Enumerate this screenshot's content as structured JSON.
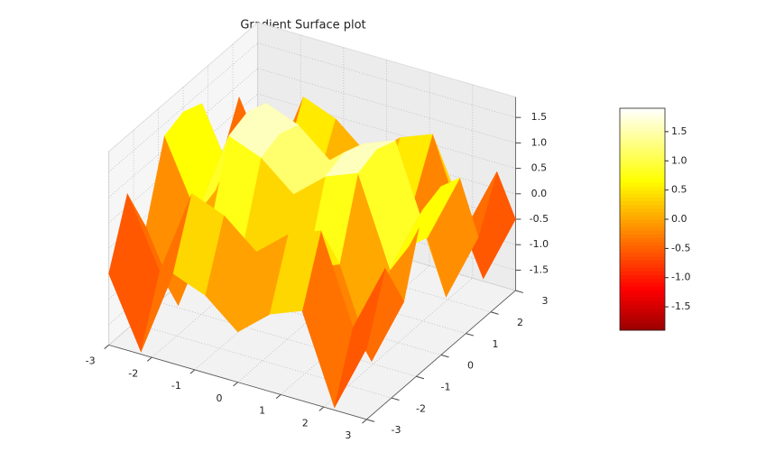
{
  "chart_data": {
    "type": "surface",
    "title": "Gradient Surface plot",
    "colormap": "hot",
    "x": [
      -3,
      -2.25,
      -1.5,
      -0.75,
      0,
      0.75,
      1.5,
      2.25,
      3
    ],
    "y": [
      -3,
      -2.25,
      -1.5,
      -0.75,
      0,
      0.75,
      1.5,
      2.25,
      3
    ],
    "z": [
      [
        -0.5,
        -1.85,
        -0.13,
        -0.38,
        -0.91,
        -0.38,
        -0.13,
        -1.85,
        -0.5
      ],
      [
        0.75,
        -0.6,
        1.12,
        0.87,
        0.34,
        0.87,
        1.12,
        -0.6,
        0.75
      ],
      [
        -0.22,
        -1.57,
        0.15,
        -0.1,
        -0.63,
        -0.1,
        0.15,
        -1.57,
        -0.22
      ],
      [
        1.26,
        -0.09,
        1.63,
        1.38,
        0.85,
        1.38,
        1.63,
        -0.09,
        1.26
      ],
      [
        1.41,
        0.06,
        1.78,
        1.53,
        1,
        1.53,
        1.78,
        0.06,
        1.41
      ],
      [
        1.26,
        -0.09,
        1.63,
        1.38,
        0.85,
        1.38,
        1.63,
        -0.09,
        1.26
      ],
      [
        -0.22,
        -1.57,
        0.15,
        -0.1,
        -0.63,
        -0.1,
        0.15,
        -1.57,
        -0.22
      ],
      [
        0.75,
        -0.6,
        1.12,
        0.87,
        0.34,
        0.87,
        1.12,
        -0.6,
        0.75
      ],
      [
        -0.5,
        -1.85,
        -0.13,
        -0.38,
        -0.91,
        -0.38,
        -0.13,
        -1.85,
        -0.5
      ]
    ],
    "xlim": [
      -3,
      3
    ],
    "ylim": [
      -3,
      3
    ],
    "zlim": [
      -1.9,
      1.9
    ],
    "xticks": [
      -3,
      -2,
      -1,
      0,
      1,
      2,
      3
    ],
    "yticks": [
      -3,
      -2,
      -1,
      0,
      1,
      2,
      3
    ],
    "zticks": [
      -1.5,
      -1.0,
      -0.5,
      0.0,
      0.5,
      1.0,
      1.5
    ],
    "colorbar_ticks": [
      -1.5,
      -1.0,
      -0.5,
      0.0,
      0.5,
      1.0,
      1.5
    ],
    "grid": true
  }
}
